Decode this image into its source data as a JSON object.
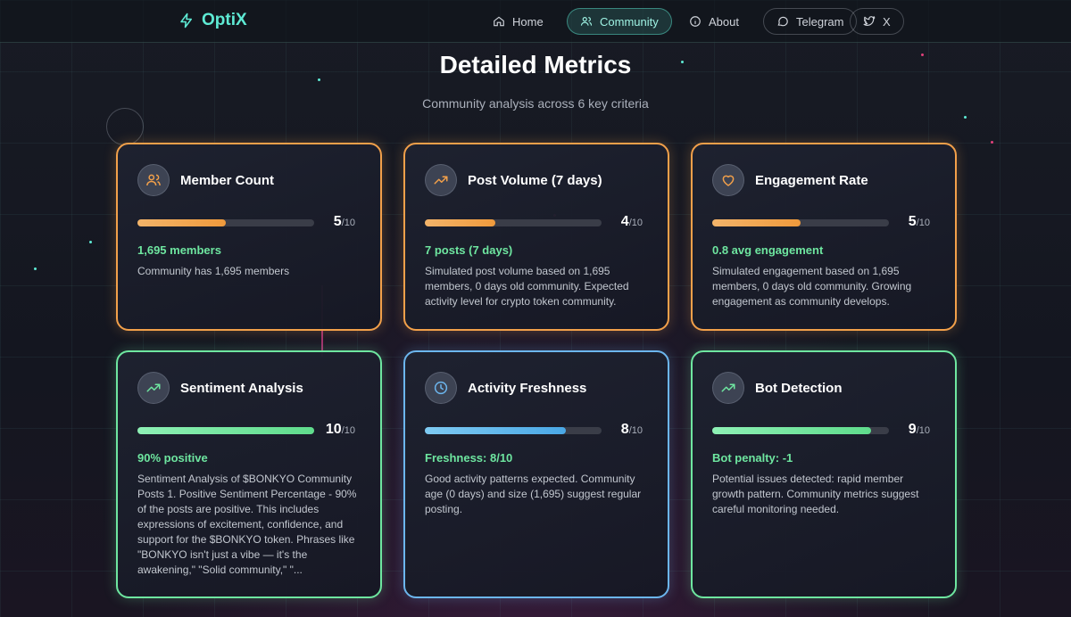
{
  "nav": {
    "brand": "OptiX",
    "items": [
      {
        "label": "Home",
        "icon": "home-icon"
      },
      {
        "label": "Community",
        "icon": "users-icon",
        "active": true
      },
      {
        "label": "About",
        "icon": "info-icon"
      },
      {
        "label": "Telegram",
        "icon": "chat-icon"
      },
      {
        "label": "X",
        "icon": "twitter-icon"
      }
    ]
  },
  "header": {
    "title": "Detailed Metrics",
    "subtitle": "Community analysis across 6 key criteria"
  },
  "colors": {
    "accent": "#5eead4",
    "orange": "#f2a04a",
    "green": "#6ee6a0",
    "blue": "#6cb6ee"
  },
  "metrics": [
    {
      "title": "Member Count",
      "icon": "users-icon",
      "score": "5",
      "max": "/10",
      "fraction": 0.5,
      "highlight": "1,695 members",
      "description": "Community has 1,695 members"
    },
    {
      "title": "Post Volume (7 days)",
      "icon": "trending-up-icon",
      "score": "4",
      "max": "/10",
      "fraction": 0.4,
      "highlight": "7 posts (7 days)",
      "description": "Simulated post volume based on 1,695 members, 0 days old community. Expected activity level for crypto token community."
    },
    {
      "title": "Engagement Rate",
      "icon": "heart-icon",
      "score": "5",
      "max": "/10",
      "fraction": 0.5,
      "highlight": "0.8 avg engagement",
      "description": "Simulated engagement based on 1,695 members, 0 days old community. Growing engagement as community develops."
    },
    {
      "title": "Sentiment Analysis",
      "icon": "trending-up-icon",
      "score": "10",
      "max": "/10",
      "fraction": 1.0,
      "highlight": "90% positive",
      "description": "Sentiment Analysis of $BONKYO Community Posts 1. Positive Sentiment Percentage - 90% of the posts are positive. This includes expressions of excitement, confidence, and support for the $BONKYO token. Phrases like \"BONKYO isn't just a vibe — it's the awakening,\" \"Solid community,\" \"..."
    },
    {
      "title": "Activity Freshness",
      "icon": "clock-icon",
      "score": "8",
      "max": "/10",
      "fraction": 0.8,
      "highlight": "Freshness: 8/10",
      "description": "Good activity patterns expected. Community age (0 days) and size (1,695) suggest regular posting."
    },
    {
      "title": "Bot Detection",
      "icon": "trending-up-icon",
      "score": "9",
      "max": "/10",
      "fraction": 0.9,
      "highlight": "Bot penalty: -1",
      "description": "Potential issues detected: rapid member growth pattern. Community metrics suggest careful monitoring needed."
    }
  ]
}
